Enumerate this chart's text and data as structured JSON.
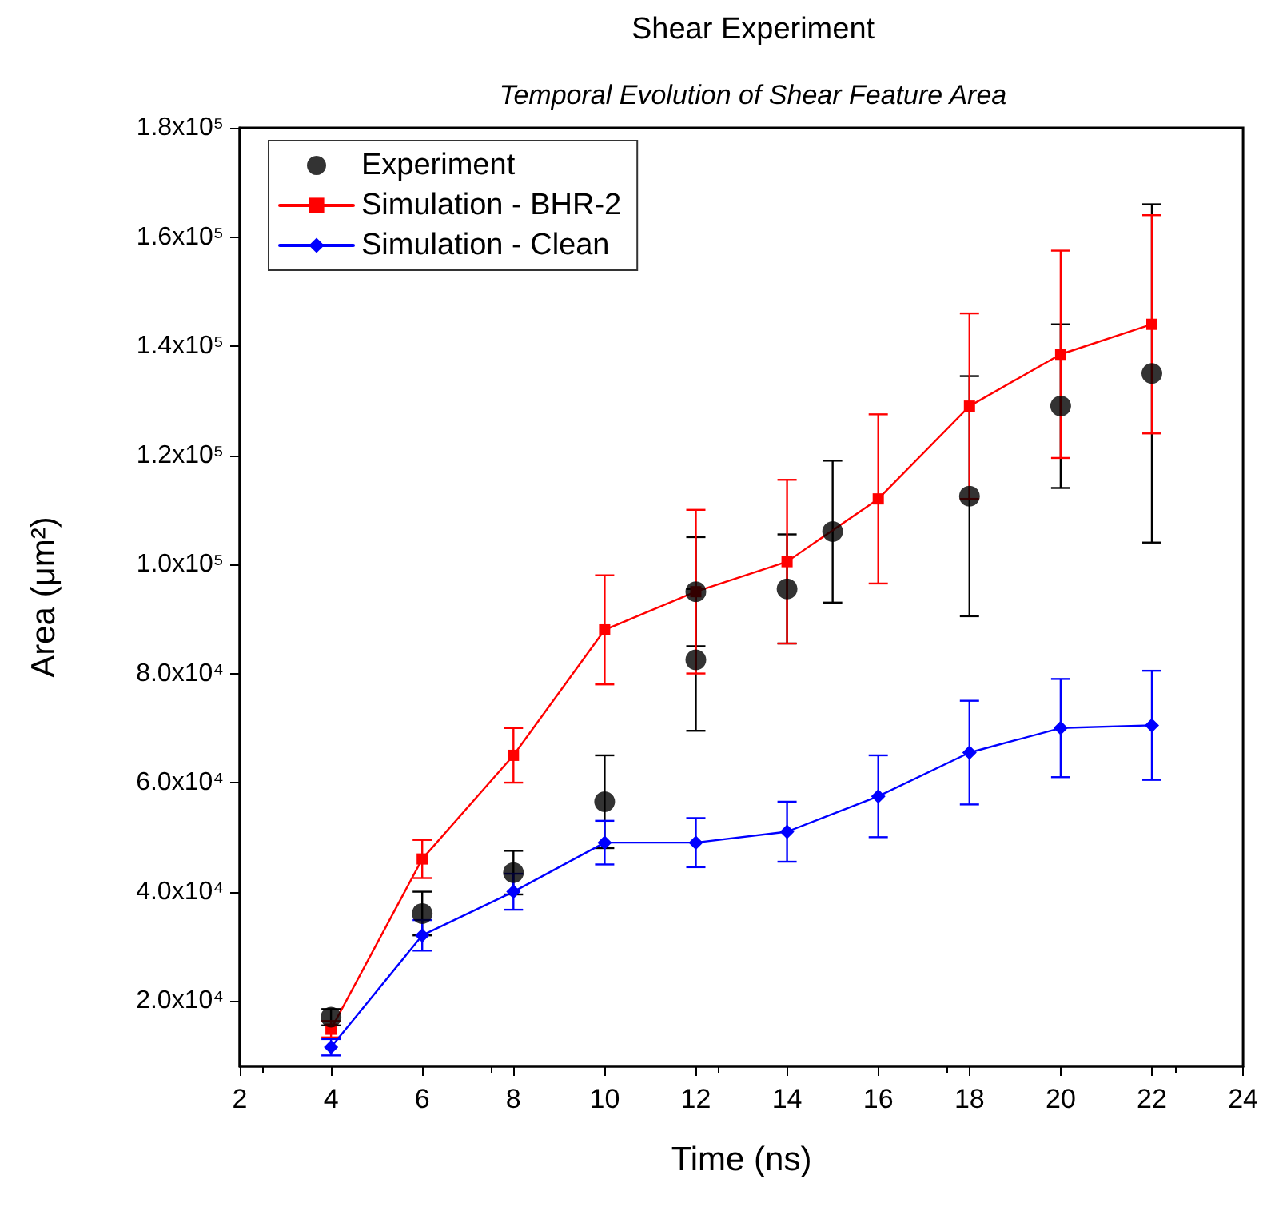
{
  "chart_data": {
    "type": "line",
    "title": "Shear Experiment",
    "subtitle": "Temporal Evolution of Shear Feature Area",
    "xlabel": "Time (ns)",
    "ylabel": "Area (μm²)",
    "xlim": [
      2,
      24
    ],
    "xticks": [
      2,
      4,
      6,
      8,
      10,
      12,
      14,
      16,
      18,
      20,
      22,
      24
    ],
    "ylim": [
      8000,
      180000
    ],
    "yticks": [
      {
        "value": 20000,
        "label": "2.0x10⁴"
      },
      {
        "value": 40000,
        "label": "4.0x10⁴"
      },
      {
        "value": 60000,
        "label": "6.0x10⁴"
      },
      {
        "value": 80000,
        "label": "8.0x10⁴"
      },
      {
        "value": 100000,
        "label": "1.0x10⁵"
      },
      {
        "value": 120000,
        "label": "1.2x10⁵"
      },
      {
        "value": 140000,
        "label": "1.4x10⁵"
      },
      {
        "value": 160000,
        "label": "1.6x10⁵"
      },
      {
        "value": 180000,
        "label": "1.8x10⁵"
      }
    ],
    "grid": false,
    "legend": "top left",
    "line_style": "solid",
    "series": [
      {
        "name": "Experiment",
        "type": "scatter",
        "marker": "circle",
        "color": "#000000",
        "x": [
          4,
          6,
          8,
          10,
          12,
          12,
          14,
          15,
          18,
          20,
          22
        ],
        "values": [
          17000,
          36000,
          43500,
          56500,
          95000,
          82500,
          95500,
          106000,
          112500,
          129000,
          135000
        ],
        "errors": [
          1500,
          4000,
          4000,
          8500,
          10000,
          13000,
          10000,
          13000,
          22000,
          15000,
          31000
        ]
      },
      {
        "name": "Simulation - BHR-2",
        "marker": "square",
        "color": "#ff0000",
        "x": [
          4,
          6,
          8,
          10,
          12,
          14,
          16,
          18,
          20,
          22
        ],
        "values": [
          14800,
          46000,
          65000,
          88000,
          95000,
          100500,
          112000,
          129000,
          138500,
          144000
        ],
        "errors": [
          1500,
          3500,
          5000,
          10000,
          15000,
          15000,
          15500,
          17000,
          19000,
          20000
        ]
      },
      {
        "name": "Simulation - Clean",
        "marker": "diamond",
        "color": "#0000ff",
        "x": [
          4,
          6,
          8,
          10,
          12,
          14,
          16,
          18,
          20,
          22
        ],
        "values": [
          11500,
          32000,
          40000,
          49000,
          49000,
          51000,
          57500,
          65500,
          70000,
          70500
        ],
        "errors": [
          1500,
          2800,
          3300,
          4000,
          4500,
          5500,
          7500,
          9500,
          9000,
          10000
        ]
      }
    ]
  }
}
